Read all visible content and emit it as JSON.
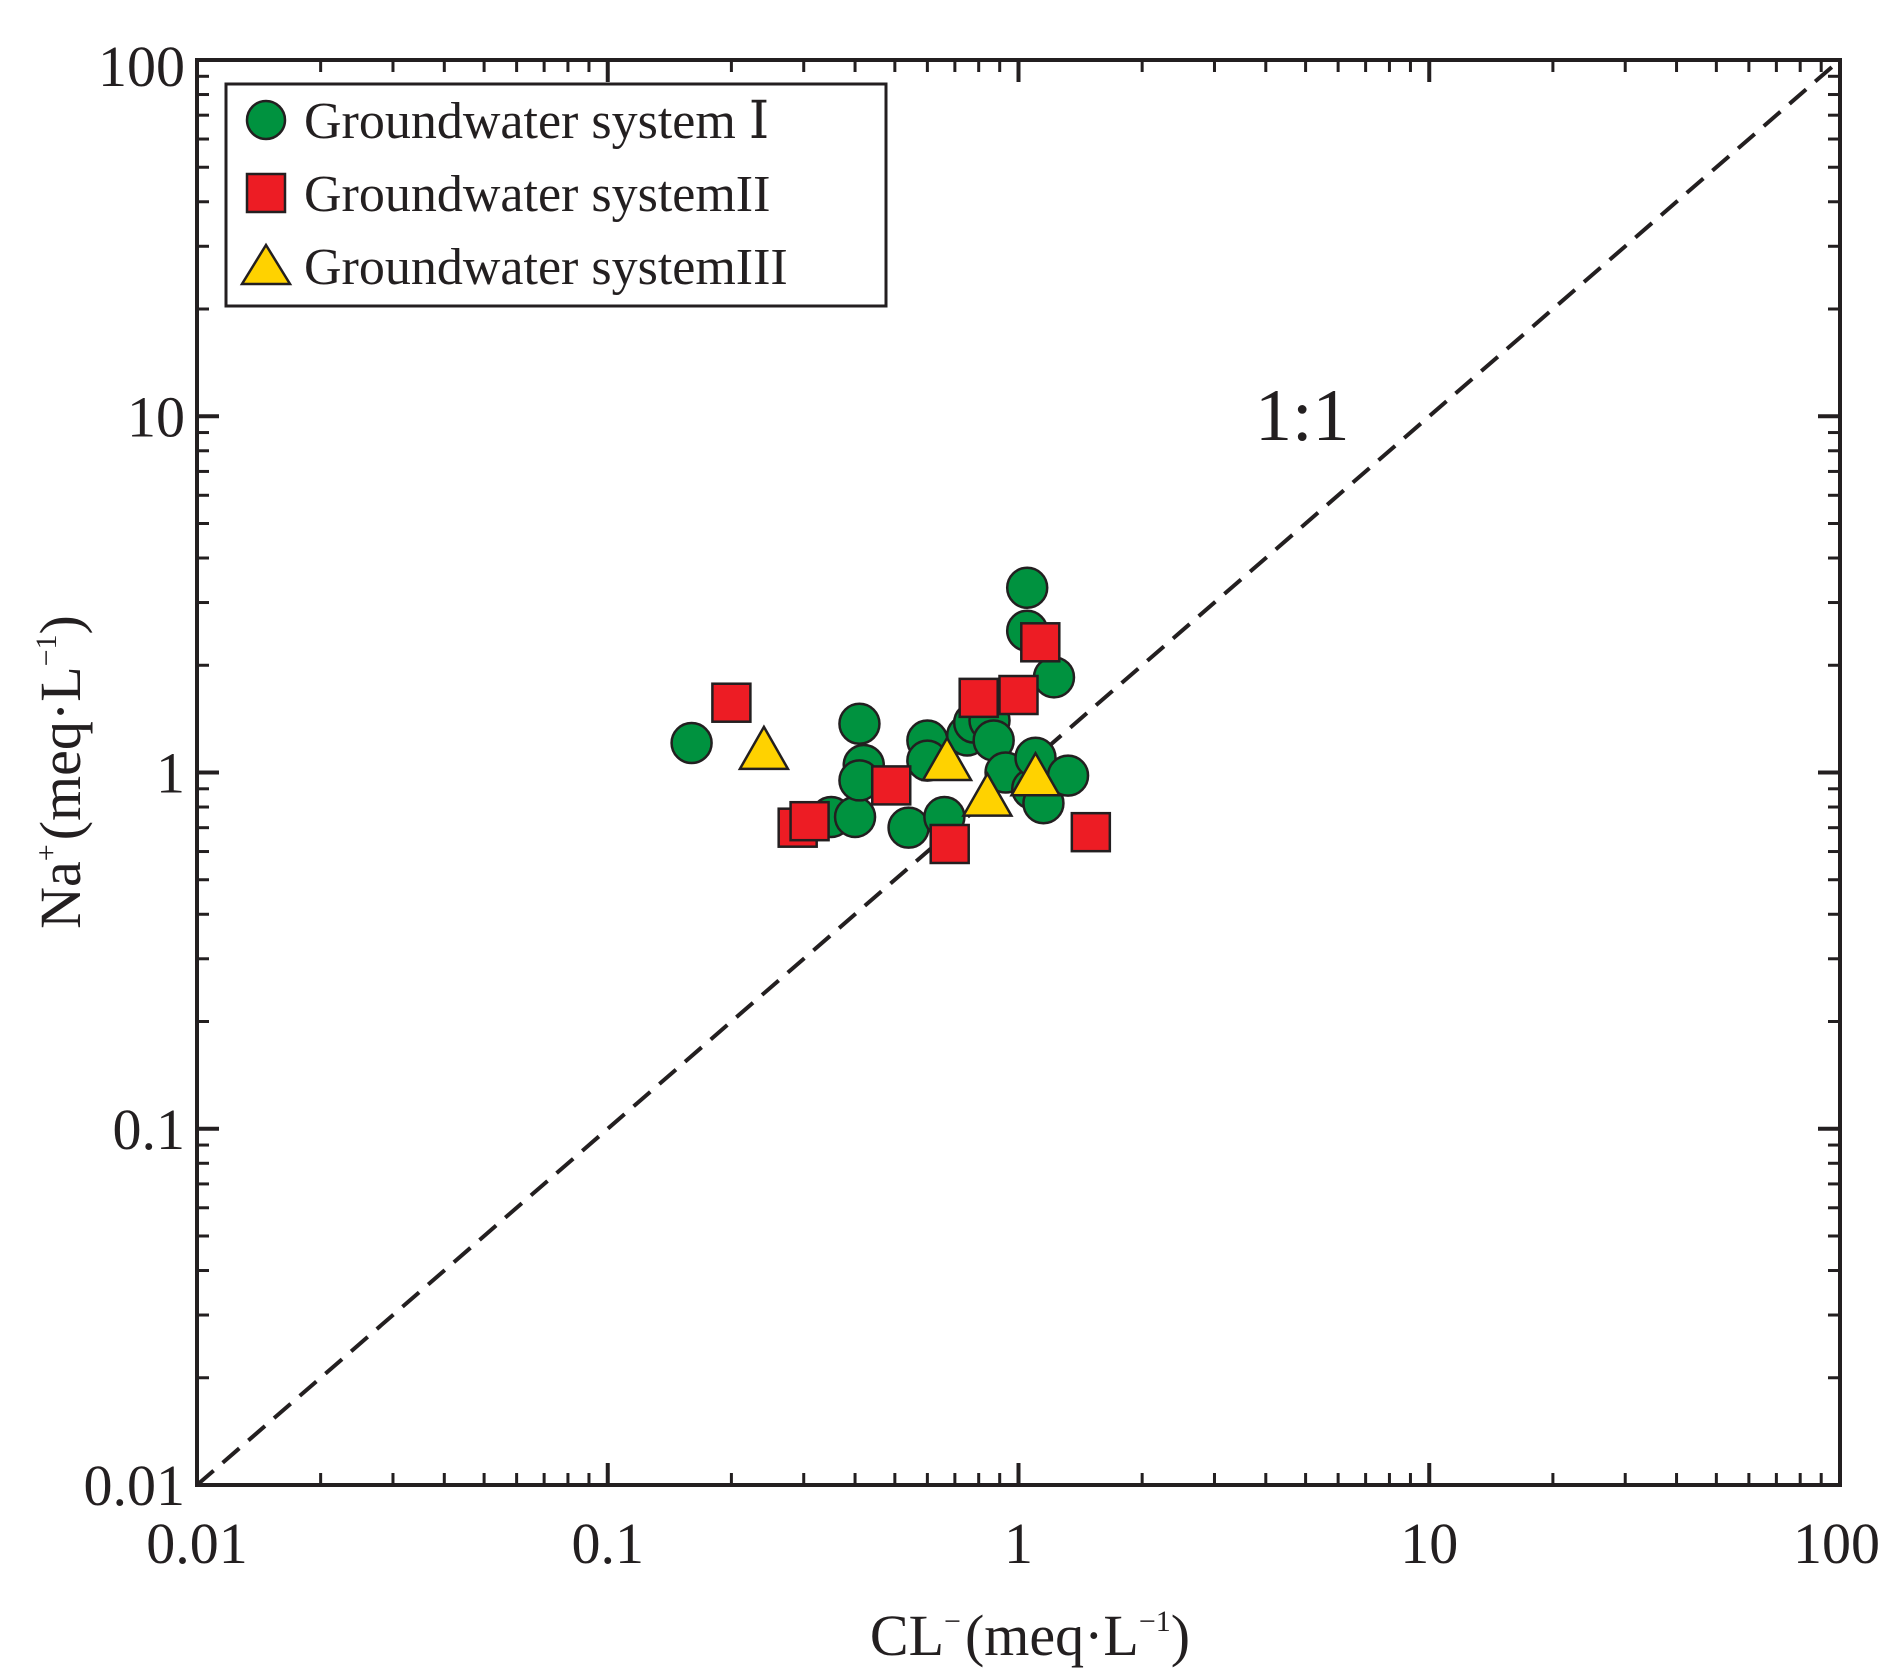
{
  "chart_data": {
    "type": "scatter",
    "x_scale": "log",
    "y_scale": "log",
    "xlim": [
      0.01,
      100
    ],
    "ylim": [
      0.01,
      100
    ],
    "x_ticks": [
      0.01,
      0.1,
      1,
      10,
      100
    ],
    "y_ticks": [
      0.01,
      0.1,
      1,
      10,
      100
    ],
    "x_tick_labels": [
      "0.01",
      "0.1",
      "1",
      "10",
      "100"
    ],
    "y_tick_labels": [
      "0.01",
      "0.1",
      "1",
      "10",
      "100"
    ],
    "xlabel": {
      "base": "CL",
      "sup": "−",
      "unit_open": "(meq·L",
      "unit_sup": "−1",
      "unit_close": ")"
    },
    "ylabel": {
      "base": "Na",
      "sup": "+",
      "unit_open": "(meq·L",
      "unit_sup": "−1",
      "unit_close": ")"
    },
    "reference_line": {
      "label": "1:1",
      "slope": 1,
      "style": "dashed",
      "color": "#231f20"
    },
    "legend_position": "top-left",
    "series": [
      {
        "name": "Groundwater system Ⅰ",
        "marker": "circle",
        "color": "#00923f",
        "points": [
          {
            "x": 0.16,
            "y": 1.21
          },
          {
            "x": 0.35,
            "y": 0.75
          },
          {
            "x": 0.4,
            "y": 0.75
          },
          {
            "x": 0.41,
            "y": 1.37
          },
          {
            "x": 0.42,
            "y": 1.05
          },
          {
            "x": 0.41,
            "y": 0.95
          },
          {
            "x": 0.54,
            "y": 0.7
          },
          {
            "x": 0.6,
            "y": 1.23
          },
          {
            "x": 0.6,
            "y": 1.08
          },
          {
            "x": 0.66,
            "y": 0.75
          },
          {
            "x": 0.75,
            "y": 1.27
          },
          {
            "x": 0.78,
            "y": 1.38
          },
          {
            "x": 0.85,
            "y": 1.4
          },
          {
            "x": 0.87,
            "y": 1.23
          },
          {
            "x": 0.93,
            "y": 1.0
          },
          {
            "x": 1.05,
            "y": 3.3
          },
          {
            "x": 1.05,
            "y": 2.5
          },
          {
            "x": 1.08,
            "y": 0.9
          },
          {
            "x": 1.1,
            "y": 1.1
          },
          {
            "x": 1.15,
            "y": 0.82
          },
          {
            "x": 1.22,
            "y": 1.85
          },
          {
            "x": 1.32,
            "y": 0.98
          }
        ]
      },
      {
        "name": "Groundwater systemII",
        "marker": "square",
        "color": "#ed1c24",
        "points": [
          {
            "x": 0.2,
            "y": 1.57
          },
          {
            "x": 0.29,
            "y": 0.7
          },
          {
            "x": 0.31,
            "y": 0.73
          },
          {
            "x": 0.49,
            "y": 0.92
          },
          {
            "x": 0.68,
            "y": 0.63
          },
          {
            "x": 0.8,
            "y": 1.62
          },
          {
            "x": 1.0,
            "y": 1.65
          },
          {
            "x": 1.13,
            "y": 2.32
          },
          {
            "x": 1.5,
            "y": 0.68
          }
        ]
      },
      {
        "name": "Groundwater systemIII",
        "marker": "triangle",
        "color": "#ffd200",
        "points": [
          {
            "x": 0.24,
            "y": 1.15
          },
          {
            "x": 0.67,
            "y": 1.07
          },
          {
            "x": 0.84,
            "y": 0.85
          },
          {
            "x": 1.1,
            "y": 0.97
          }
        ]
      }
    ]
  }
}
